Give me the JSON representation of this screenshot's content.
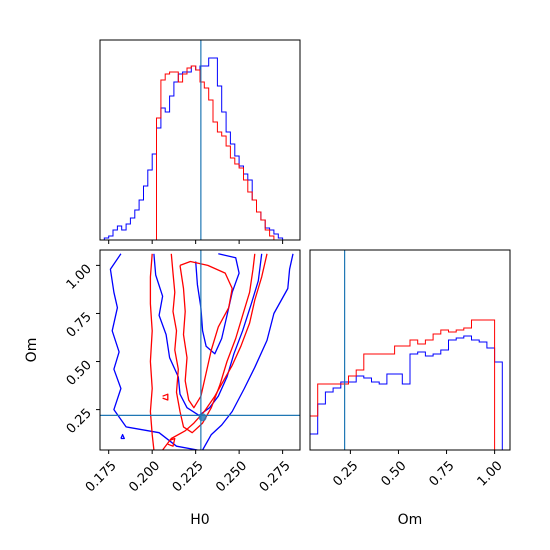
{
  "chart_data": {
    "type": "corner",
    "parameters": [
      "H0",
      "Om"
    ],
    "colors": {
      "series_a": "#0000ff",
      "series_b": "#ff0000",
      "truth": "#1f77b4"
    },
    "truth": {
      "H0": 0.228,
      "Om": 0.22
    },
    "axes": {
      "H0": {
        "range": [
          0.17,
          0.285
        ],
        "ticks": [
          0.175,
          0.2,
          0.225,
          0.25,
          0.275
        ],
        "tick_labels": [
          "0.175",
          "0.200",
          "0.225",
          "0.250",
          "0.275"
        ],
        "label": "H0"
      },
      "Om": {
        "range": [
          0.04,
          1.08
        ],
        "ticks": [
          0.25,
          0.5,
          0.75,
          1.0
        ],
        "tick_labels": [
          "0.25",
          "0.50",
          "0.75",
          "1.00"
        ],
        "label": "Om"
      }
    },
    "hist_H0": {
      "bin_edges": [
        0.17,
        0.1725,
        0.175,
        0.1775,
        0.18,
        0.1825,
        0.185,
        0.1875,
        0.19,
        0.1925,
        0.195,
        0.1975,
        0.2,
        0.2025,
        0.205,
        0.2075,
        0.21,
        0.2125,
        0.215,
        0.2175,
        0.22,
        0.2225,
        0.225,
        0.2275,
        0.23,
        0.2325,
        0.235,
        0.2375,
        0.24,
        0.2425,
        0.245,
        0.2475,
        0.25,
        0.2525,
        0.255,
        0.2575,
        0.26,
        0.2625,
        0.265,
        0.2675,
        0.27,
        0.2725,
        0.275,
        0.2775,
        0.28,
        0.2825,
        0.285
      ],
      "series": [
        {
          "color": "#0000ff",
          "values": [
            0,
            0.01,
            0.02,
            0.05,
            0.07,
            0.05,
            0.08,
            0.11,
            0.15,
            0.2,
            0.27,
            0.35,
            0.43,
            0.56,
            0.66,
            0.64,
            0.72,
            0.79,
            0.83,
            0.84,
            0.84,
            0.87,
            0.85,
            0.87,
            0.87,
            0.91,
            0.91,
            0.77,
            0.64,
            0.54,
            0.48,
            0.42,
            0.37,
            0.33,
            0.3,
            0.2,
            0.14,
            0.1,
            0.06,
            0.05,
            0.03,
            0.01,
            0,
            0,
            0,
            0
          ]
        },
        {
          "color": "#ff0000",
          "values": [
            0,
            0,
            0,
            0,
            0,
            0,
            0,
            0,
            0,
            0,
            0,
            0,
            0,
            0.61,
            0.8,
            0.83,
            0.84,
            0.84,
            0.79,
            0.83,
            0.86,
            0.87,
            0.85,
            0.79,
            0.76,
            0.7,
            0.59,
            0.54,
            0.52,
            0.47,
            0.41,
            0.38,
            0.36,
            0.3,
            0.24,
            0.2,
            0.14,
            0.1,
            0.05,
            0.02,
            0,
            0,
            0,
            0,
            0,
            0
          ]
        }
      ]
    },
    "hist_Om": {
      "bin_edges": [
        0.04,
        0.08,
        0.12,
        0.16,
        0.2,
        0.24,
        0.28,
        0.32,
        0.36,
        0.4,
        0.44,
        0.48,
        0.52,
        0.56,
        0.6,
        0.64,
        0.68,
        0.72,
        0.76,
        0.8,
        0.84,
        0.88,
        0.92,
        0.96,
        1.0,
        1.04
      ],
      "series": [
        {
          "color": "#0000ff",
          "values": [
            0.08,
            0.23,
            0.29,
            0.31,
            0.34,
            0.34,
            0.37,
            0.36,
            0.34,
            0.33,
            0.38,
            0.38,
            0.33,
            0.48,
            0.49,
            0.47,
            0.48,
            0.5,
            0.55,
            0.56,
            0.57,
            0.55,
            0.54,
            0.51,
            0.44
          ]
        },
        {
          "color": "#ff0000",
          "values": [
            0.17,
            0.33,
            0.33,
            0.33,
            0.33,
            0.37,
            0.4,
            0.48,
            0.48,
            0.48,
            0.48,
            0.52,
            0.52,
            0.55,
            0.53,
            0.55,
            0.58,
            0.6,
            0.59,
            0.6,
            0.61,
            0.65,
            0.65,
            0.65,
            0.0
          ]
        }
      ]
    },
    "contours": [
      {
        "color": "#0000ff",
        "polylines": [
          [
            [
              0.182,
              1.06
            ],
            [
              0.176,
              0.98
            ],
            [
              0.178,
              0.86
            ],
            [
              0.18,
              0.78
            ],
            [
              0.177,
              0.66
            ],
            [
              0.181,
              0.55
            ],
            [
              0.178,
              0.46
            ],
            [
              0.182,
              0.36
            ],
            [
              0.178,
              0.25
            ],
            [
              0.185,
              0.16
            ],
            [
              0.204,
              0.13
            ],
            [
              0.214,
              0.06
            ],
            [
              0.226,
              0.04
            ]
          ],
          [
            [
              0.229,
              0.04
            ],
            [
              0.234,
              0.12
            ],
            [
              0.24,
              0.17
            ],
            [
              0.246,
              0.24
            ],
            [
              0.253,
              0.36
            ],
            [
              0.259,
              0.47
            ],
            [
              0.266,
              0.61
            ],
            [
              0.27,
              0.75
            ],
            [
              0.278,
              0.88
            ],
            [
              0.279,
              0.98
            ],
            [
              0.281,
              1.06
            ]
          ],
          [
            [
              0.201,
              1.06
            ],
            [
              0.202,
              0.95
            ],
            [
              0.206,
              0.84
            ],
            [
              0.204,
              0.74
            ],
            [
              0.208,
              0.64
            ],
            [
              0.21,
              0.52
            ],
            [
              0.215,
              0.42
            ],
            [
              0.216,
              0.33
            ],
            [
              0.22,
              0.26
            ],
            [
              0.227,
              0.22
            ],
            [
              0.233,
              0.26
            ],
            [
              0.238,
              0.32
            ],
            [
              0.243,
              0.42
            ],
            [
              0.247,
              0.54
            ],
            [
              0.252,
              0.66
            ],
            [
              0.257,
              0.8
            ],
            [
              0.261,
              0.92
            ],
            [
              0.263,
              1.06
            ]
          ],
          [
            [
              0.225,
              1.02
            ],
            [
              0.226,
              0.9
            ],
            [
              0.228,
              0.78
            ],
            [
              0.229,
              0.66
            ],
            [
              0.231,
              0.58
            ],
            [
              0.236,
              0.54
            ],
            [
              0.24,
              0.62
            ],
            [
              0.243,
              0.74
            ],
            [
              0.246,
              0.86
            ],
            [
              0.25,
              0.96
            ],
            [
              0.248,
              1.04
            ],
            [
              0.238,
              1.06
            ]
          ],
          [
            [
              0.182,
              0.1
            ],
            [
              0.184,
              0.1
            ],
            [
              0.183,
              0.12
            ],
            [
              0.182,
              0.1
            ]
          ]
        ]
      },
      {
        "color": "#ff0000",
        "polylines": [
          [
            [
              0.2,
              1.06
            ],
            [
              0.199,
              0.94
            ],
            [
              0.199,
              0.8
            ],
            [
              0.2,
              0.66
            ],
            [
              0.199,
              0.5
            ],
            [
              0.2,
              0.36
            ],
            [
              0.199,
              0.24
            ],
            [
              0.2,
              0.12
            ],
            [
              0.201,
              0.04
            ]
          ],
          [
            [
              0.206,
              0.04
            ],
            [
              0.211,
              0.1
            ],
            [
              0.219,
              0.14
            ],
            [
              0.224,
              0.18
            ],
            [
              0.23,
              0.24
            ],
            [
              0.236,
              0.32
            ],
            [
              0.241,
              0.4
            ],
            [
              0.246,
              0.48
            ],
            [
              0.251,
              0.58
            ],
            [
              0.256,
              0.7
            ],
            [
              0.259,
              0.82
            ],
            [
              0.263,
              0.94
            ],
            [
              0.266,
              1.06
            ]
          ],
          [
            [
              0.211,
              1.06
            ],
            [
              0.212,
              0.96
            ],
            [
              0.213,
              0.86
            ],
            [
              0.212,
              0.76
            ],
            [
              0.214,
              0.66
            ],
            [
              0.213,
              0.56
            ],
            [
              0.215,
              0.46
            ],
            [
              0.214,
              0.34
            ],
            [
              0.216,
              0.24
            ],
            [
              0.218,
              0.16
            ],
            [
              0.223,
              0.13
            ],
            [
              0.229,
              0.18
            ],
            [
              0.234,
              0.26
            ],
            [
              0.239,
              0.38
            ],
            [
              0.243,
              0.5
            ],
            [
              0.248,
              0.62
            ],
            [
              0.252,
              0.74
            ],
            [
              0.256,
              0.86
            ],
            [
              0.258,
              0.98
            ],
            [
              0.259,
              1.06
            ]
          ],
          [
            [
              0.216,
              1.0
            ],
            [
              0.218,
              0.88
            ],
            [
              0.219,
              0.76
            ],
            [
              0.218,
              0.64
            ],
            [
              0.22,
              0.52
            ],
            [
              0.219,
              0.4
            ],
            [
              0.221,
              0.3
            ],
            [
              0.224,
              0.26
            ],
            [
              0.228,
              0.32
            ],
            [
              0.231,
              0.44
            ],
            [
              0.234,
              0.56
            ],
            [
              0.238,
              0.68
            ],
            [
              0.244,
              0.78
            ],
            [
              0.246,
              0.88
            ],
            [
              0.242,
              0.96
            ],
            [
              0.232,
              1.0
            ],
            [
              0.222,
              1.02
            ],
            [
              0.216,
              1.0
            ]
          ],
          [
            [
              0.206,
              0.32
            ],
            [
              0.209,
              0.33
            ],
            [
              0.209,
              0.3
            ],
            [
              0.206,
              0.31
            ]
          ],
          [
            [
              0.21,
              0.09
            ],
            [
              0.213,
              0.1
            ],
            [
              0.212,
              0.06
            ],
            [
              0.209,
              0.07
            ]
          ]
        ]
      }
    ],
    "points": [
      {
        "H0": 0.229,
        "Om": 0.21,
        "color": "#1f77b4"
      }
    ]
  }
}
